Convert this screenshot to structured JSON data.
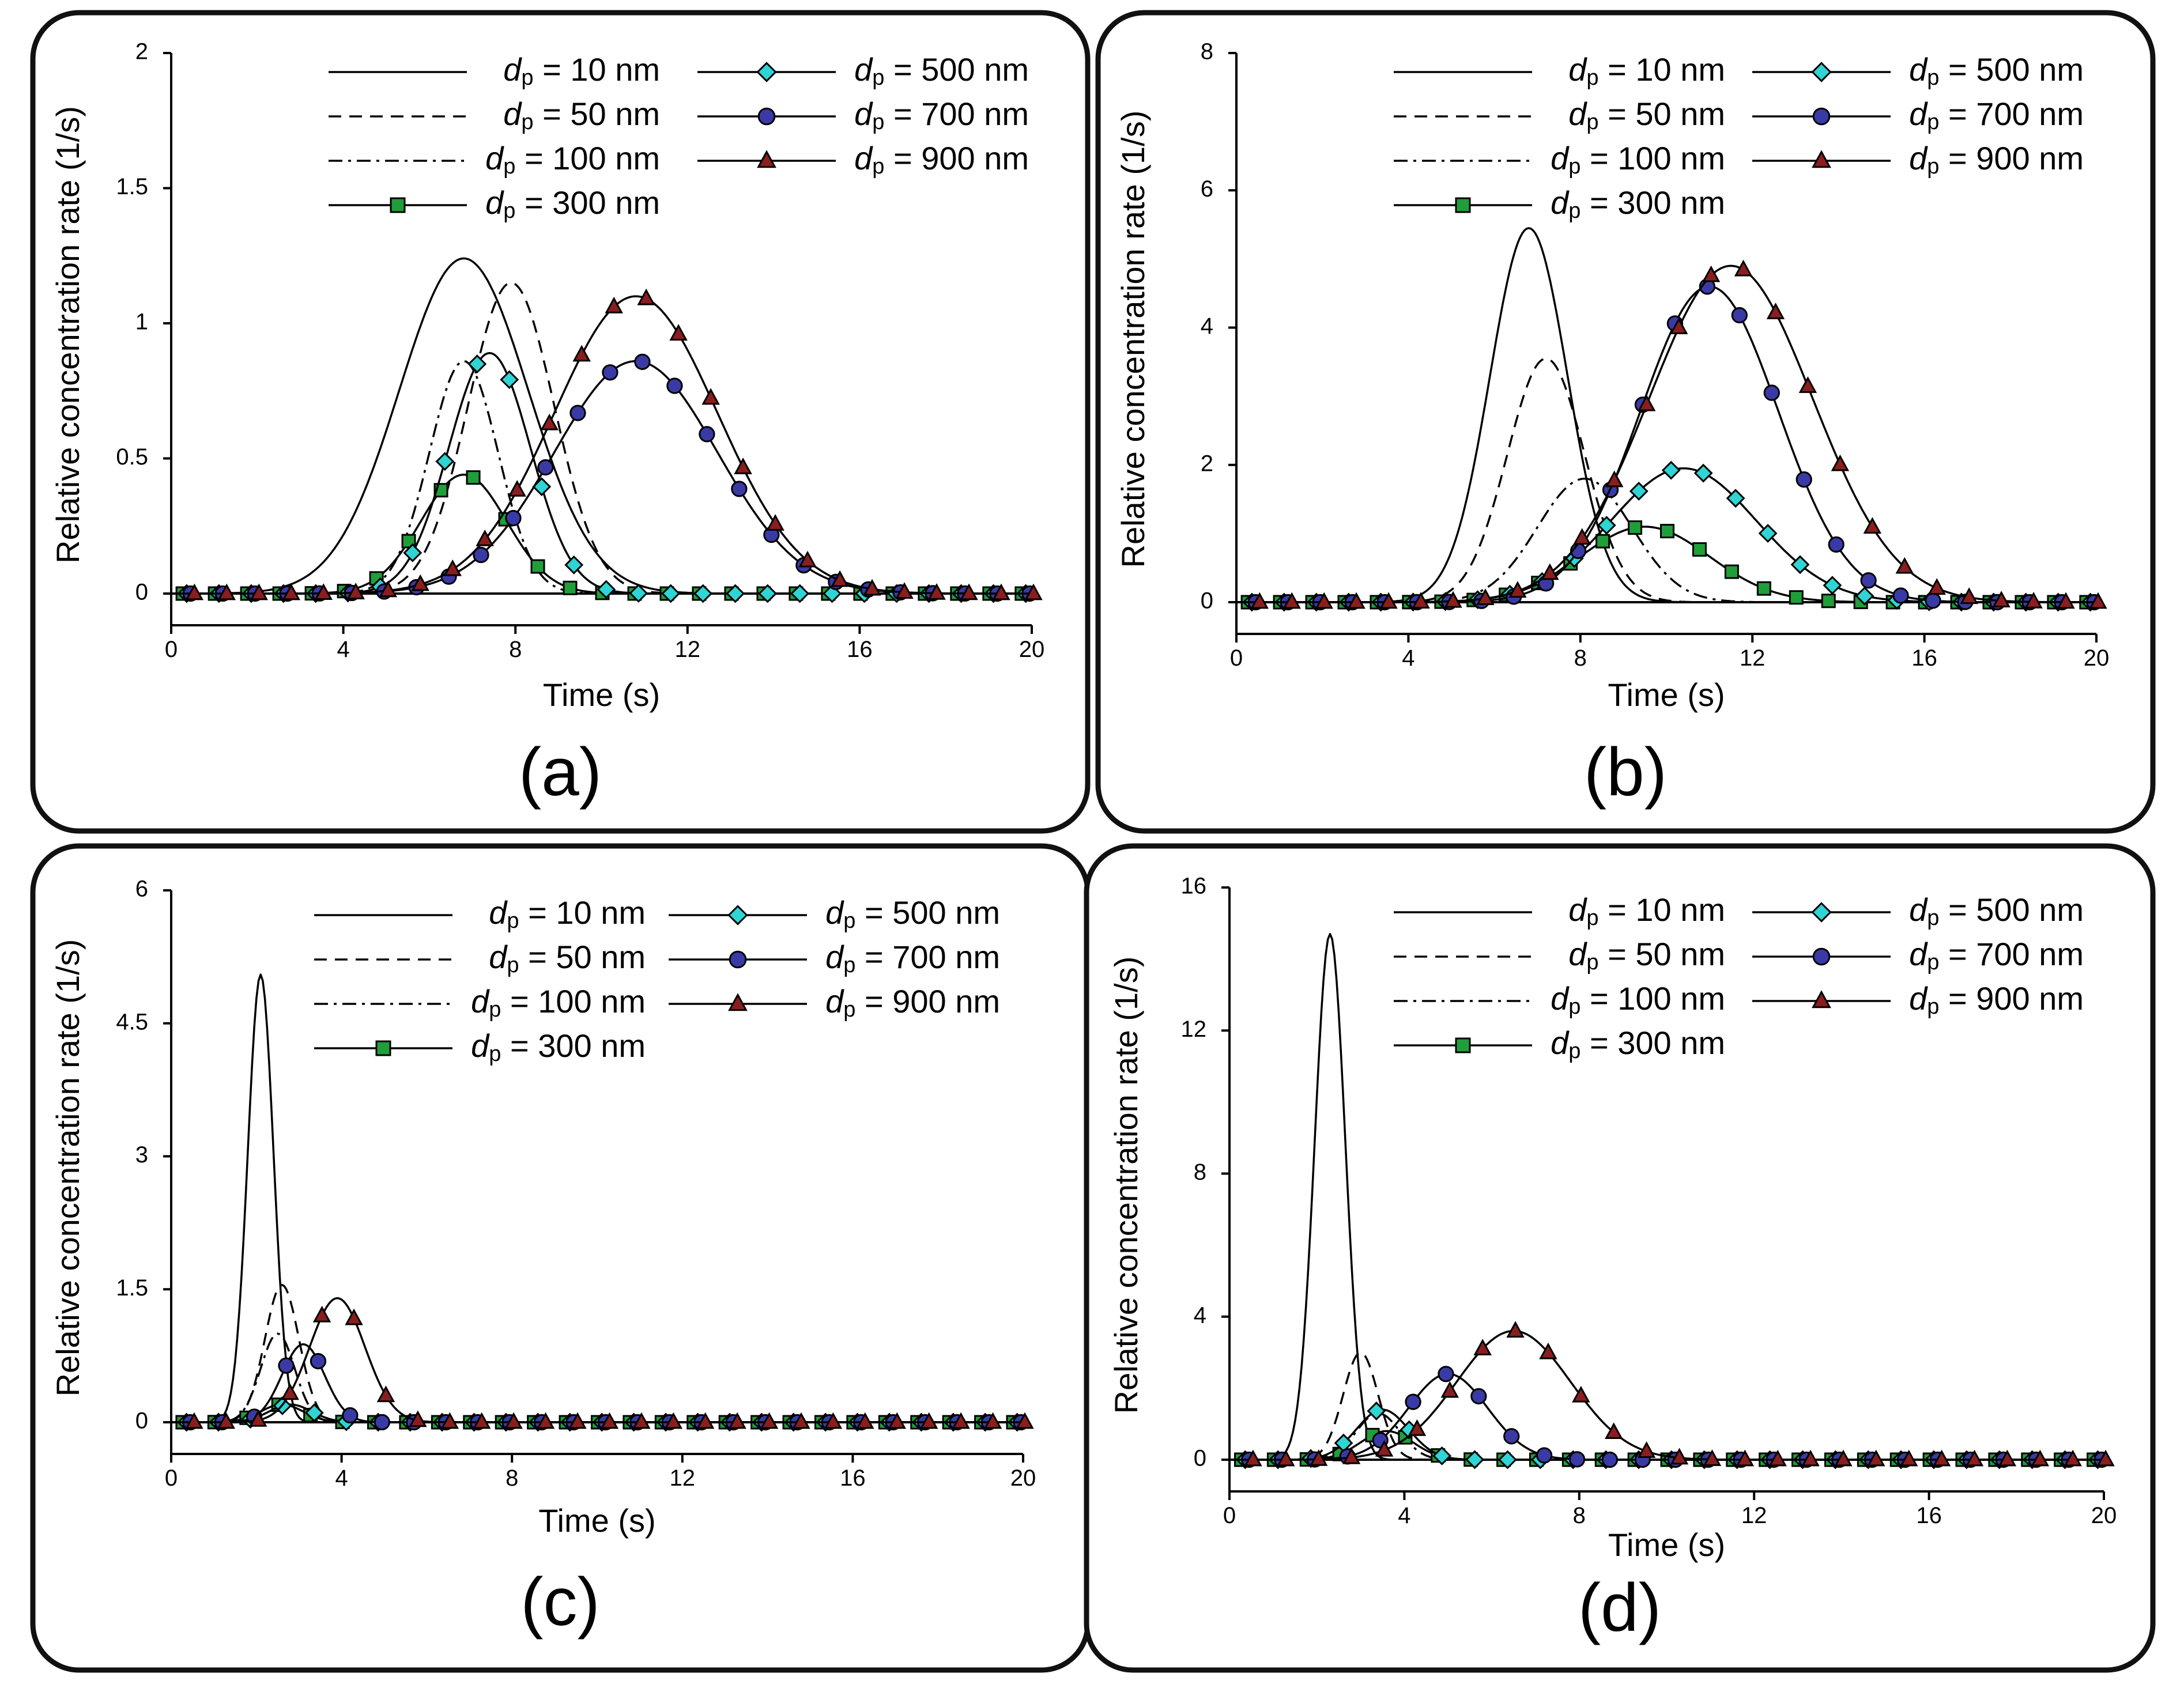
{
  "figure": {
    "marker_colors": {
      "square": "#1f9e3a",
      "diamond": "#2fd4d4",
      "circle": "#3a3aa6",
      "triangle": "#8a1e1e"
    },
    "line_color": "#000000"
  },
  "chart_data": [
    {
      "type": "line",
      "panel_label": "(a)",
      "xlabel": "Time (s)",
      "ylabel": "Relative concentration rate (1/s)",
      "xlim": [
        0,
        20
      ],
      "ylim": [
        0,
        2
      ],
      "xticks": [
        "0",
        "4",
        "8",
        "12",
        "16",
        "20"
      ],
      "yticks": [
        "0",
        "0.5",
        "1",
        "1.5",
        "2"
      ],
      "legend_position": "top-right",
      "series": [
        {
          "name": "dp = 10 nm",
          "sub_d": "d",
          "sub_p": "p",
          "rest": " = 10 nm",
          "style": "solid",
          "marker": "none",
          "peak_t": 6.8,
          "peak": 1.24,
          "sigma_left": 1.5,
          "sigma_right": 1.5
        },
        {
          "name": "dp = 50 nm",
          "sub_d": "d",
          "sub_p": "p",
          "rest": " = 50 nm",
          "style": "dashed",
          "marker": "none",
          "peak_t": 7.9,
          "peak": 1.15,
          "sigma_left": 1.0,
          "sigma_right": 1.0
        },
        {
          "name": "dp = 100 nm",
          "sub_d": "d",
          "sub_p": "p",
          "rest": " = 100 nm",
          "style": "dashdot",
          "marker": "none",
          "peak_t": 6.8,
          "peak": 0.86,
          "sigma_left": 0.8,
          "sigma_right": 0.8
        },
        {
          "name": "dp = 300 nm",
          "sub_d": "d",
          "sub_p": "p",
          "rest": " = 300 nm",
          "style": "solid",
          "marker": "square",
          "peak_t": 6.8,
          "peak": 0.44,
          "sigma_left": 1.0,
          "sigma_right": 1.0
        },
        {
          "name": "dp = 500 nm",
          "sub_d": "d",
          "sub_p": "p",
          "rest": " = 500 nm",
          "style": "solid",
          "marker": "diamond",
          "peak_t": 7.4,
          "peak": 0.89,
          "sigma_left": 0.95,
          "sigma_right": 0.95
        },
        {
          "name": "dp = 700 nm",
          "sub_d": "d",
          "sub_p": "p",
          "rest": " = 700 nm",
          "style": "solid",
          "marker": "circle",
          "peak_t": 10.8,
          "peak": 0.86,
          "sigma_left": 1.9,
          "sigma_right": 1.9
        },
        {
          "name": "dp = 900 nm",
          "sub_d": "d",
          "sub_p": "p",
          "rest": " = 900 nm",
          "style": "solid",
          "marker": "triangle",
          "peak_t": 10.8,
          "peak": 1.1,
          "sigma_left": 1.9,
          "sigma_right": 1.9
        }
      ]
    },
    {
      "type": "line",
      "panel_label": "(b)",
      "xlabel": "Time (s)",
      "ylabel": "Relative concentration rate (1/s)",
      "xlim": [
        0,
        20
      ],
      "ylim": [
        0,
        8
      ],
      "xticks": [
        "0",
        "4",
        "8",
        "12",
        "16",
        "20"
      ],
      "yticks": [
        "0",
        "2",
        "4",
        "6",
        "8"
      ],
      "legend_position": "top-right",
      "series": [
        {
          "name": "dp = 10 nm",
          "sub_d": "d",
          "sub_p": "p",
          "rest": " = 10 nm",
          "style": "solid",
          "marker": "none",
          "peak_t": 6.8,
          "peak": 5.45,
          "sigma_left": 0.9,
          "sigma_right": 0.9
        },
        {
          "name": "dp = 50 nm",
          "sub_d": "d",
          "sub_p": "p",
          "rest": " = 50 nm",
          "style": "dashed",
          "marker": "none",
          "peak_t": 7.2,
          "peak": 3.55,
          "sigma_left": 0.9,
          "sigma_right": 0.9
        },
        {
          "name": "dp = 100 nm",
          "sub_d": "d",
          "sub_p": "p",
          "rest": " = 100 nm",
          "style": "dashdot",
          "marker": "none",
          "peak_t": 8.1,
          "peak": 1.8,
          "sigma_left": 1.1,
          "sigma_right": 1.1
        },
        {
          "name": "dp = 300 nm",
          "sub_d": "d",
          "sub_p": "p",
          "rest": " = 300 nm",
          "style": "solid",
          "marker": "square",
          "peak_t": 9.5,
          "peak": 1.1,
          "sigma_left": 1.5,
          "sigma_right": 1.5
        },
        {
          "name": "dp = 500 nm",
          "sub_d": "d",
          "sub_p": "p",
          "rest": " = 500 nm",
          "style": "solid",
          "marker": "diamond",
          "peak_t": 10.4,
          "peak": 1.95,
          "sigma_left": 1.7,
          "sigma_right": 1.7
        },
        {
          "name": "dp = 700 nm",
          "sub_d": "d",
          "sub_p": "p",
          "rest": " = 700 nm",
          "style": "solid",
          "marker": "circle",
          "peak_t": 11.0,
          "peak": 4.6,
          "sigma_left": 1.6,
          "sigma_right": 1.6
        },
        {
          "name": "dp = 900 nm",
          "sub_d": "d",
          "sub_p": "p",
          "rest": " = 900 nm",
          "style": "solid",
          "marker": "triangle",
          "peak_t": 11.5,
          "peak": 4.9,
          "sigma_left": 1.9,
          "sigma_right": 1.9
        }
      ]
    },
    {
      "type": "line",
      "panel_label": "(c)",
      "xlabel": "Time (s)",
      "ylabel": "Relative concentration rate (1/s)",
      "xlim": [
        0,
        20
      ],
      "ylim": [
        0,
        6
      ],
      "xticks": [
        "0",
        "4",
        "8",
        "12",
        "16",
        "20"
      ],
      "yticks": [
        "0",
        "1.5",
        "3",
        "4.5",
        "6"
      ],
      "legend_position": "top-right",
      "series": [
        {
          "name": "dp = 10 nm",
          "sub_d": "d",
          "sub_p": "p",
          "rest": " = 10 nm",
          "style": "solid",
          "marker": "none",
          "peak_t": 2.1,
          "peak": 5.05,
          "sigma_left": 0.3,
          "sigma_right": 0.3
        },
        {
          "name": "dp = 50 nm",
          "sub_d": "d",
          "sub_p": "p",
          "rest": " = 50 nm",
          "style": "dashed",
          "marker": "none",
          "peak_t": 2.6,
          "peak": 1.55,
          "sigma_left": 0.4,
          "sigma_right": 0.4
        },
        {
          "name": "dp = 100 nm",
          "sub_d": "d",
          "sub_p": "p",
          "rest": " = 100 nm",
          "style": "dashdot",
          "marker": "none",
          "peak_t": 2.5,
          "peak": 1.0,
          "sigma_left": 0.4,
          "sigma_right": 0.4
        },
        {
          "name": "dp = 300 nm",
          "sub_d": "d",
          "sub_p": "p",
          "rest": " = 300 nm",
          "style": "solid",
          "marker": "square",
          "peak_t": 2.6,
          "peak": 0.2,
          "sigma_left": 0.5,
          "sigma_right": 0.5
        },
        {
          "name": "dp = 500 nm",
          "sub_d": "d",
          "sub_p": "p",
          "rest": " = 500 nm",
          "style": "solid",
          "marker": "diamond",
          "peak_t": 2.8,
          "peak": 0.2,
          "sigma_left": 0.5,
          "sigma_right": 0.5
        },
        {
          "name": "dp = 700 nm",
          "sub_d": "d",
          "sub_p": "p",
          "rest": " = 700 nm",
          "style": "solid",
          "marker": "circle",
          "peak_t": 3.1,
          "peak": 0.88,
          "sigma_left": 0.5,
          "sigma_right": 0.5
        },
        {
          "name": "dp = 900 nm",
          "sub_d": "d",
          "sub_p": "p",
          "rest": " = 900 nm",
          "style": "solid",
          "marker": "triangle",
          "peak_t": 3.9,
          "peak": 1.4,
          "sigma_left": 0.65,
          "sigma_right": 0.65
        }
      ]
    },
    {
      "type": "line",
      "panel_label": "(d)",
      "xlabel": "Time (s)",
      "ylabel": "Relative concentration rate (1/s)",
      "xlim": [
        0,
        20
      ],
      "ylim": [
        0,
        16
      ],
      "xticks": [
        "0",
        "4",
        "8",
        "12",
        "16",
        "20"
      ],
      "yticks": [
        "0",
        "4",
        "8",
        "12",
        "16"
      ],
      "legend_position": "top-right",
      "series": [
        {
          "name": "dp = 10 nm",
          "sub_d": "d",
          "sub_p": "p",
          "rest": " = 10 nm",
          "style": "solid",
          "marker": "none",
          "peak_t": 2.3,
          "peak": 14.7,
          "sigma_left": 0.35,
          "sigma_right": 0.35
        },
        {
          "name": "dp = 50 nm",
          "sub_d": "d",
          "sub_p": "p",
          "rest": " = 50 nm",
          "style": "dashed",
          "marker": "none",
          "peak_t": 3.0,
          "peak": 3.0,
          "sigma_left": 0.4,
          "sigma_right": 0.4
        },
        {
          "name": "dp = 100 nm",
          "sub_d": "d",
          "sub_p": "p",
          "rest": " = 100 nm",
          "style": "dashdot",
          "marker": "none",
          "peak_t": 3.4,
          "peak": 1.3,
          "sigma_left": 0.5,
          "sigma_right": 0.5
        },
        {
          "name": "dp = 300 nm",
          "sub_d": "d",
          "sub_p": "p",
          "rest": " = 300 nm",
          "style": "solid",
          "marker": "square",
          "peak_t": 3.6,
          "peak": 0.8,
          "sigma_left": 0.6,
          "sigma_right": 0.6
        },
        {
          "name": "dp = 500 nm",
          "sub_d": "d",
          "sub_p": "p",
          "rest": " = 500 nm",
          "style": "solid",
          "marker": "diamond",
          "peak_t": 3.5,
          "peak": 1.4,
          "sigma_left": 0.6,
          "sigma_right": 0.6
        },
        {
          "name": "dp = 700 nm",
          "sub_d": "d",
          "sub_p": "p",
          "rest": " = 700 nm",
          "style": "solid",
          "marker": "circle",
          "peak_t": 5.0,
          "peak": 2.4,
          "sigma_left": 0.9,
          "sigma_right": 0.9
        },
        {
          "name": "dp = 900 nm",
          "sub_d": "d",
          "sub_p": "p",
          "rest": " = 900 nm",
          "style": "solid",
          "marker": "triangle",
          "peak_t": 6.5,
          "peak": 3.6,
          "sigma_left": 1.3,
          "sigma_right": 1.3
        }
      ]
    }
  ]
}
